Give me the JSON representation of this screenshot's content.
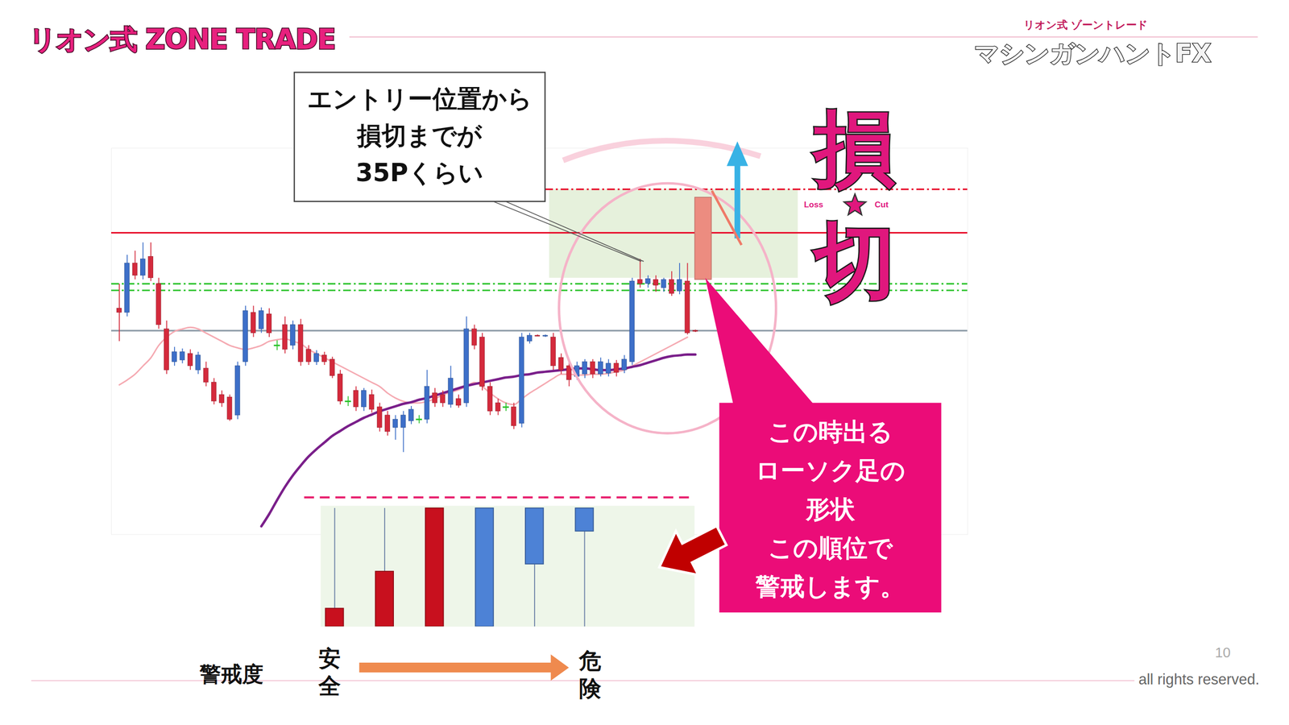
{
  "chart_data": [
    {
      "type": "candlestick",
      "x": [
        1,
        2,
        3,
        4,
        5,
        6,
        7,
        8,
        9,
        10,
        11,
        12,
        13,
        14,
        15,
        16,
        17,
        18,
        19,
        20,
        21,
        22,
        23,
        24,
        25,
        26,
        27,
        28,
        29,
        30,
        31,
        32,
        33,
        34,
        35,
        36,
        37,
        38,
        39,
        40,
        41,
        42,
        43,
        44,
        45,
        46,
        47,
        48,
        49,
        50,
        51,
        52,
        53,
        54,
        55,
        56,
        57,
        58,
        59,
        60,
        61,
        62,
        63,
        64,
        65,
        66,
        67,
        68,
        69,
        70,
        71,
        72,
        73,
        74
      ],
      "open": [
        225,
        220,
        280,
        265,
        288,
        255,
        200,
        160,
        162,
        170,
        150,
        152,
        135,
        120,
        117,
        95,
        160,
        220,
        200,
        218,
        180,
        205,
        180,
        205,
        175,
        160,
        168,
        163,
        145,
        112,
        125,
        105,
        120,
        105,
        95,
        80,
        80,
        88,
        90,
        90,
        122,
        120,
        108,
        115,
        110,
        200,
        190,
        130,
        110,
        105,
        105,
        85,
        185,
        192,
        191,
        190,
        165,
        155,
        142,
        145,
        160,
        145,
        146,
        158,
        150,
        160,
        260,
        255,
        260,
        250,
        260,
        246,
        258,
        198
      ],
      "high": [
        255,
        290,
        295,
        305,
        305,
        262,
        210,
        178,
        176,
        175,
        172,
        160,
        140,
        125,
        120,
        160,
        228,
        228,
        226,
        225,
        186,
        215,
        210,
        212,
        180,
        174,
        172,
        166,
        150,
        118,
        130,
        128,
        126,
        110,
        100,
        95,
        100,
        106,
        95,
        150,
        128,
        125,
        155,
        120,
        215,
        205,
        195,
        135,
        115,
        110,
        110,
        195,
        195,
        193,
        193,
        195,
        170,
        160,
        160,
        163,
        163,
        165,
        163,
        162,
        168,
        262,
        285,
        265,
        265,
        262,
        270,
        280,
        280,
        199
      ],
      "low": [
        185,
        215,
        260,
        260,
        258,
        200,
        145,
        155,
        158,
        150,
        145,
        130,
        108,
        105,
        88,
        90,
        155,
        190,
        195,
        190,
        174,
        170,
        175,
        155,
        156,
        156,
        156,
        140,
        108,
        106,
        100,
        100,
        98,
        75,
        70,
        65,
        50,
        84,
        85,
        85,
        105,
        105,
        104,
        104,
        105,
        175,
        125,
        95,
        95,
        100,
        78,
        80,
        182,
        191,
        190,
        150,
        145,
        130,
        138,
        140,
        140,
        142,
        142,
        142,
        146,
        156,
        250,
        250,
        245,
        245,
        240,
        242,
        193,
        196
      ],
      "close": [
        220,
        280,
        265,
        285,
        262,
        205,
        150,
        172,
        172,
        155,
        168,
        135,
        112,
        110,
        90,
        155,
        222,
        195,
        222,
        195,
        180,
        175,
        205,
        160,
        160,
        170,
        160,
        143,
        112,
        112,
        105,
        125,
        102,
        80,
        75,
        90,
        95,
        102,
        90,
        130,
        110,
        110,
        140,
        107,
        200,
        180,
        130,
        100,
        100,
        105,
        82,
        190,
        192,
        191,
        192,
        155,
        150,
        138,
        155,
        160,
        145,
        160,
        158,
        147,
        163,
        258,
        255,
        261,
        253,
        260,
        243,
        260,
        195,
        197
      ],
      "colors": [
        "#d42a3c",
        "#3d6fc8",
        "#d42a3c",
        "#3d6fc8",
        "#d42a3c",
        "#d42a3c",
        "#d42a3c",
        "#3d6fc8",
        "#3d6fc8",
        "#d42a3c",
        "#3d6fc8",
        "#d42a3c",
        "#d42a3c",
        "#d42a3c",
        "#d42a3c",
        "#3d6fc8",
        "#3d6fc8",
        "#d42a3c",
        "#3d6fc8",
        "#d42a3c",
        "#27c227",
        "#d42a3c",
        "#3d6fc8",
        "#d42a3c",
        "#d42a3c",
        "#3d6fc8",
        "#d42a3c",
        "#d42a3c",
        "#d42a3c",
        "#27c227",
        "#d42a3c",
        "#3d6fc8",
        "#d42a3c",
        "#d42a3c",
        "#d42a3c",
        "#3d6fc8",
        "#3d6fc8",
        "#3d6fc8",
        "#27c227",
        "#3d6fc8",
        "#d42a3c",
        "#d42a3c",
        "#3d6fc8",
        "#d42a3c",
        "#3d6fc8",
        "#d42a3c",
        "#d42a3c",
        "#d42a3c",
        "#d42a3c",
        "#27c227",
        "#d42a3c",
        "#3d6fc8",
        "#3d6fc8",
        "#d42a3c",
        "#3d6fc8",
        "#d42a3c",
        "#d42a3c",
        "#d42a3c",
        "#3d6fc8",
        "#3d6fc8",
        "#d42a3c",
        "#3d6fc8",
        "#3d6fc8",
        "#d42a3c",
        "#3d6fc8",
        "#3d6fc8",
        "#d42a3c",
        "#3d6fc8",
        "#d42a3c",
        "#3d6fc8",
        "#d42a3c",
        "#3d6fc8",
        "#d42a3c",
        "#d42a3c"
      ],
      "series": [
        {
          "type": "line",
          "color": "#f5aab2",
          "values": [
            132,
            138,
            145,
            155,
            165,
            180,
            190,
            197,
            200,
            202,
            200,
            195,
            190,
            185,
            180,
            177,
            175,
            177,
            180,
            185,
            187,
            188,
            185,
            182,
            175,
            170,
            165,
            160,
            155,
            150,
            145,
            140,
            135,
            130,
            122,
            116,
            112,
            110,
            110,
            112,
            115,
            120,
            123,
            126,
            130,
            135,
            130,
            122,
            115,
            110,
            108,
            115,
            122,
            128,
            134,
            140,
            145,
            145,
            144,
            144,
            145,
            145,
            146,
            148,
            150,
            155,
            160,
            165,
            170,
            175,
            180,
            185,
            190,
            null
          ]
        },
        {
          "type": "line",
          "color": "#7a1f8a",
          "values": [
            null,
            null,
            null,
            null,
            null,
            null,
            null,
            null,
            null,
            null,
            null,
            null,
            null,
            null,
            null,
            null,
            null,
            null,
            -40,
            -25,
            -8,
            8,
            22,
            34,
            45,
            54,
            62,
            70,
            76,
            82,
            87,
            92,
            96,
            100,
            103,
            106,
            109,
            111,
            114,
            116,
            119,
            122,
            125,
            128,
            131,
            133,
            135,
            137,
            139,
            141,
            142,
            144,
            145,
            147,
            148,
            149,
            150,
            151,
            152,
            152,
            151,
            150,
            150,
            151,
            152,
            154,
            156,
            159,
            162,
            165,
            167,
            168,
            169,
            169
          ]
        }
      ],
      "levels": [
        {
          "value": 370,
          "color": "#e8112d",
          "line_style": "dashdot",
          "from": 55
        },
        {
          "value": 317,
          "color": "#e8112d",
          "line_style": "solid"
        },
        {
          "value": 255,
          "color": "#2ec42e",
          "line_style": "dashdot"
        },
        {
          "value": 247,
          "color": "#2ec42e",
          "line_style": "dashdot"
        },
        {
          "value": 198,
          "color": "#8c9aa6",
          "line_style": "solid"
        }
      ],
      "zone": {
        "x": [
          55.5,
          87
        ],
        "y": [
          262,
          370
        ],
        "color": "#e6f1dc"
      },
      "projection": {
        "x": 75,
        "open": 260,
        "high": 360,
        "low": 260,
        "close": 360,
        "color": "#ec8c80"
      },
      "xlim": [
        0,
        108.5
      ],
      "ylim": [
        -50,
        420
      ],
      "tick_labels": false
    },
    {
      "type": "candlestick",
      "x": [
        1,
        2,
        3,
        4,
        5,
        6
      ],
      "open": [
        22,
        67,
        144,
        0,
        76,
        116
      ],
      "high": [
        144,
        144,
        144,
        144,
        144,
        144
      ],
      "low": [
        0,
        0,
        0,
        0,
        0,
        0
      ],
      "close": [
        0,
        0,
        0,
        144,
        144,
        144
      ],
      "colors": [
        "#c8101e",
        "#c8101e",
        "#c8101e",
        "#4d82d6",
        "#4d82d6",
        "#4d82d6"
      ],
      "xlim": [
        0.72,
        8.2
      ],
      "ylim": [
        0,
        147
      ],
      "tick_labels": false
    }
  ],
  "slide": {
    "header": "リオン式 ZONE TRADE",
    "logo": {
      "top": "リオン式 ゾーントレード",
      "main": "マシンガンハントFX"
    },
    "callout": [
      "エントリー位置から",
      "損切までが",
      "35Pくらい"
    ],
    "stamp": {
      "top": "損",
      "left": "Loss",
      "right": "Cut",
      "bottom": "切"
    },
    "note": [
      "この時出る",
      "ローソク足の",
      "形状",
      "この順位で",
      "警戒します。"
    ],
    "scale": {
      "label": "警戒度",
      "start": "安全",
      "end": "危険"
    },
    "page_number": 10,
    "copyright": "all rights reserved."
  }
}
